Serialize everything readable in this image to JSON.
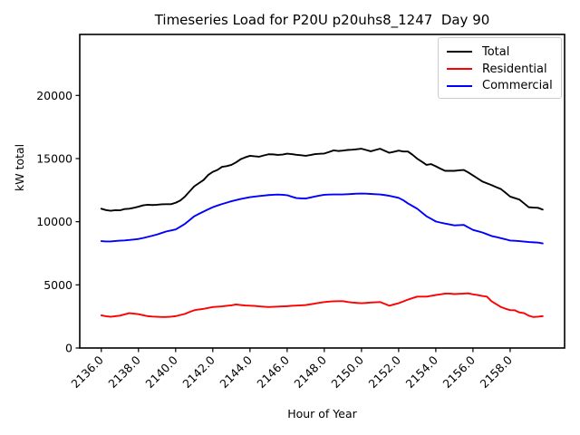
{
  "chart_data": {
    "type": "line",
    "title": "Timeseries Load for P20U p20uhs8_1247  Day 90",
    "xlabel": "Hour of Year",
    "ylabel": "kW total",
    "xlim": [
      2134.84,
      2160.93
    ],
    "ylim": [
      0,
      24830
    ],
    "grid": false,
    "legend_position": "upper right",
    "xticks": [
      2136,
      2138,
      2140,
      2142,
      2144,
      2146,
      2148,
      2150,
      2152,
      2154,
      2156,
      2158
    ],
    "xtick_labels": [
      "2136.0",
      "2138.0",
      "2140.0",
      "2142.0",
      "2144.0",
      "2146.0",
      "2148.0",
      "2150.0",
      "2152.0",
      "2154.0",
      "2156.0",
      "2158.0"
    ],
    "yticks": [
      0,
      5000,
      10000,
      15000,
      20000
    ],
    "ytick_labels": [
      "0",
      "5000",
      "10000",
      "15000",
      "20000"
    ],
    "series": [
      {
        "name": "Total",
        "color": "#000000",
        "points": [
          [
            2136.0,
            11030
          ],
          [
            2136.25,
            10920
          ],
          [
            2136.5,
            10870
          ],
          [
            2136.75,
            10910
          ],
          [
            2137.0,
            10900
          ],
          [
            2137.25,
            11000
          ],
          [
            2137.5,
            11030
          ],
          [
            2137.75,
            11100
          ],
          [
            2138.0,
            11190
          ],
          [
            2138.25,
            11300
          ],
          [
            2138.5,
            11340
          ],
          [
            2138.75,
            11320
          ],
          [
            2139.0,
            11340
          ],
          [
            2139.25,
            11380
          ],
          [
            2139.5,
            11390
          ],
          [
            2139.75,
            11390
          ],
          [
            2140.0,
            11500
          ],
          [
            2140.25,
            11680
          ],
          [
            2140.5,
            11990
          ],
          [
            2140.75,
            12400
          ],
          [
            2141.0,
            12800
          ],
          [
            2141.25,
            13050
          ],
          [
            2141.5,
            13300
          ],
          [
            2141.75,
            13700
          ],
          [
            2142.0,
            13950
          ],
          [
            2142.25,
            14100
          ],
          [
            2142.5,
            14350
          ],
          [
            2142.75,
            14400
          ],
          [
            2143.0,
            14500
          ],
          [
            2143.25,
            14700
          ],
          [
            2143.5,
            14950
          ],
          [
            2143.75,
            15100
          ],
          [
            2144.0,
            15220
          ],
          [
            2144.25,
            15180
          ],
          [
            2144.5,
            15150
          ],
          [
            2144.75,
            15250
          ],
          [
            2145.0,
            15340
          ],
          [
            2145.25,
            15330
          ],
          [
            2145.5,
            15290
          ],
          [
            2145.75,
            15320
          ],
          [
            2146.0,
            15390
          ],
          [
            2146.25,
            15350
          ],
          [
            2146.5,
            15300
          ],
          [
            2146.75,
            15260
          ],
          [
            2147.0,
            15220
          ],
          [
            2147.25,
            15280
          ],
          [
            2147.5,
            15350
          ],
          [
            2147.75,
            15380
          ],
          [
            2148.0,
            15400
          ],
          [
            2148.25,
            15520
          ],
          [
            2148.5,
            15650
          ],
          [
            2148.75,
            15600
          ],
          [
            2149.0,
            15630
          ],
          [
            2149.25,
            15680
          ],
          [
            2149.5,
            15700
          ],
          [
            2149.75,
            15740
          ],
          [
            2150.0,
            15780
          ],
          [
            2150.25,
            15680
          ],
          [
            2150.5,
            15580
          ],
          [
            2150.75,
            15680
          ],
          [
            2151.0,
            15780
          ],
          [
            2151.25,
            15620
          ],
          [
            2151.5,
            15460
          ],
          [
            2151.75,
            15540
          ],
          [
            2152.0,
            15630
          ],
          [
            2152.25,
            15560
          ],
          [
            2152.5,
            15560
          ],
          [
            2152.75,
            15300
          ],
          [
            2153.0,
            14990
          ],
          [
            2153.25,
            14750
          ],
          [
            2153.5,
            14500
          ],
          [
            2153.75,
            14560
          ],
          [
            2154.0,
            14390
          ],
          [
            2154.25,
            14200
          ],
          [
            2154.5,
            14030
          ],
          [
            2154.75,
            14030
          ],
          [
            2155.0,
            14030
          ],
          [
            2155.25,
            14070
          ],
          [
            2155.5,
            14100
          ],
          [
            2155.75,
            13900
          ],
          [
            2156.0,
            13670
          ],
          [
            2156.25,
            13430
          ],
          [
            2156.5,
            13190
          ],
          [
            2156.75,
            13040
          ],
          [
            2157.0,
            12900
          ],
          [
            2157.25,
            12740
          ],
          [
            2157.5,
            12590
          ],
          [
            2157.75,
            12300
          ],
          [
            2158.0,
            11990
          ],
          [
            2158.25,
            11870
          ],
          [
            2158.5,
            11750
          ],
          [
            2158.75,
            11450
          ],
          [
            2159.0,
            11150
          ],
          [
            2159.25,
            11120
          ],
          [
            2159.5,
            11100
          ],
          [
            2159.75,
            10960
          ]
        ]
      },
      {
        "name": "Residential",
        "color": "#ff0000",
        "points": [
          [
            2136.0,
            2590
          ],
          [
            2136.25,
            2520
          ],
          [
            2136.5,
            2470
          ],
          [
            2136.75,
            2520
          ],
          [
            2137.0,
            2560
          ],
          [
            2137.25,
            2660
          ],
          [
            2137.5,
            2760
          ],
          [
            2137.75,
            2720
          ],
          [
            2138.0,
            2680
          ],
          [
            2138.25,
            2600
          ],
          [
            2138.5,
            2520
          ],
          [
            2138.75,
            2490
          ],
          [
            2139.0,
            2470
          ],
          [
            2139.25,
            2450
          ],
          [
            2139.5,
            2450
          ],
          [
            2139.75,
            2480
          ],
          [
            2140.0,
            2520
          ],
          [
            2140.25,
            2610
          ],
          [
            2140.5,
            2700
          ],
          [
            2140.75,
            2850
          ],
          [
            2141.0,
            2990
          ],
          [
            2141.25,
            3050
          ],
          [
            2141.5,
            3100
          ],
          [
            2141.75,
            3170
          ],
          [
            2142.0,
            3240
          ],
          [
            2142.25,
            3270
          ],
          [
            2142.5,
            3300
          ],
          [
            2142.75,
            3340
          ],
          [
            2143.0,
            3380
          ],
          [
            2143.25,
            3450
          ],
          [
            2143.5,
            3400
          ],
          [
            2143.75,
            3370
          ],
          [
            2144.0,
            3350
          ],
          [
            2144.25,
            3330
          ],
          [
            2144.5,
            3300
          ],
          [
            2144.75,
            3270
          ],
          [
            2145.0,
            3240
          ],
          [
            2145.25,
            3260
          ],
          [
            2145.5,
            3280
          ],
          [
            2145.75,
            3300
          ],
          [
            2146.0,
            3310
          ],
          [
            2146.25,
            3340
          ],
          [
            2146.5,
            3360
          ],
          [
            2146.75,
            3380
          ],
          [
            2147.0,
            3400
          ],
          [
            2147.25,
            3460
          ],
          [
            2147.5,
            3520
          ],
          [
            2147.75,
            3580
          ],
          [
            2148.0,
            3640
          ],
          [
            2148.25,
            3670
          ],
          [
            2148.5,
            3700
          ],
          [
            2148.75,
            3710
          ],
          [
            2149.0,
            3710
          ],
          [
            2149.25,
            3650
          ],
          [
            2149.5,
            3600
          ],
          [
            2149.75,
            3570
          ],
          [
            2150.0,
            3550
          ],
          [
            2150.25,
            3570
          ],
          [
            2150.5,
            3600
          ],
          [
            2150.75,
            3620
          ],
          [
            2151.0,
            3640
          ],
          [
            2151.25,
            3500
          ],
          [
            2151.5,
            3350
          ],
          [
            2151.75,
            3450
          ],
          [
            2152.0,
            3550
          ],
          [
            2152.25,
            3690
          ],
          [
            2152.5,
            3830
          ],
          [
            2152.75,
            3950
          ],
          [
            2153.0,
            4070
          ],
          [
            2153.25,
            4070
          ],
          [
            2153.5,
            4070
          ],
          [
            2153.75,
            4130
          ],
          [
            2154.0,
            4190
          ],
          [
            2154.25,
            4250
          ],
          [
            2154.5,
            4310
          ],
          [
            2154.75,
            4310
          ],
          [
            2155.0,
            4270
          ],
          [
            2155.25,
            4290
          ],
          [
            2155.5,
            4310
          ],
          [
            2155.75,
            4330
          ],
          [
            2156.0,
            4250
          ],
          [
            2156.25,
            4190
          ],
          [
            2156.5,
            4120
          ],
          [
            2156.75,
            4070
          ],
          [
            2157.0,
            3700
          ],
          [
            2157.25,
            3480
          ],
          [
            2157.5,
            3250
          ],
          [
            2157.75,
            3110
          ],
          [
            2158.0,
            3000
          ],
          [
            2158.25,
            2990
          ],
          [
            2158.5,
            2820
          ],
          [
            2158.75,
            2760
          ],
          [
            2159.0,
            2560
          ],
          [
            2159.25,
            2450
          ],
          [
            2159.5,
            2480
          ],
          [
            2159.75,
            2520
          ]
        ]
      },
      {
        "name": "Commercial",
        "color": "#0000ff",
        "points": [
          [
            2136.0,
            8460
          ],
          [
            2136.25,
            8440
          ],
          [
            2136.5,
            8440
          ],
          [
            2136.75,
            8470
          ],
          [
            2137.0,
            8500
          ],
          [
            2137.25,
            8520
          ],
          [
            2137.5,
            8550
          ],
          [
            2137.75,
            8590
          ],
          [
            2138.0,
            8630
          ],
          [
            2138.25,
            8710
          ],
          [
            2138.5,
            8800
          ],
          [
            2138.75,
            8890
          ],
          [
            2139.0,
            8990
          ],
          [
            2139.25,
            9110
          ],
          [
            2139.5,
            9230
          ],
          [
            2139.75,
            9310
          ],
          [
            2140.0,
            9390
          ],
          [
            2140.25,
            9600
          ],
          [
            2140.5,
            9830
          ],
          [
            2140.75,
            10130
          ],
          [
            2141.0,
            10430
          ],
          [
            2141.25,
            10620
          ],
          [
            2141.5,
            10800
          ],
          [
            2141.75,
            10980
          ],
          [
            2142.0,
            11150
          ],
          [
            2142.25,
            11280
          ],
          [
            2142.5,
            11400
          ],
          [
            2142.75,
            11510
          ],
          [
            2143.0,
            11620
          ],
          [
            2143.25,
            11710
          ],
          [
            2143.5,
            11800
          ],
          [
            2143.75,
            11870
          ],
          [
            2144.0,
            11940
          ],
          [
            2144.25,
            11990
          ],
          [
            2144.5,
            12030
          ],
          [
            2144.75,
            12070
          ],
          [
            2145.0,
            12110
          ],
          [
            2145.25,
            12130
          ],
          [
            2145.5,
            12150
          ],
          [
            2145.75,
            12130
          ],
          [
            2146.0,
            12100
          ],
          [
            2146.25,
            11980
          ],
          [
            2146.5,
            11870
          ],
          [
            2146.75,
            11850
          ],
          [
            2147.0,
            11840
          ],
          [
            2147.25,
            11920
          ],
          [
            2147.5,
            12000
          ],
          [
            2147.75,
            12070
          ],
          [
            2148.0,
            12130
          ],
          [
            2148.25,
            12150
          ],
          [
            2148.5,
            12160
          ],
          [
            2148.75,
            12160
          ],
          [
            2149.0,
            12160
          ],
          [
            2149.25,
            12180
          ],
          [
            2149.5,
            12200
          ],
          [
            2149.75,
            12220
          ],
          [
            2150.0,
            12230
          ],
          [
            2150.25,
            12220
          ],
          [
            2150.5,
            12200
          ],
          [
            2150.75,
            12180
          ],
          [
            2151.0,
            12160
          ],
          [
            2151.25,
            12110
          ],
          [
            2151.5,
            12050
          ],
          [
            2151.75,
            11970
          ],
          [
            2152.0,
            11890
          ],
          [
            2152.25,
            11700
          ],
          [
            2152.5,
            11450
          ],
          [
            2152.75,
            11240
          ],
          [
            2153.0,
            11030
          ],
          [
            2153.25,
            10730
          ],
          [
            2153.5,
            10430
          ],
          [
            2153.75,
            10230
          ],
          [
            2154.0,
            10020
          ],
          [
            2154.25,
            9930
          ],
          [
            2154.5,
            9850
          ],
          [
            2154.75,
            9780
          ],
          [
            2155.0,
            9710
          ],
          [
            2155.25,
            9730
          ],
          [
            2155.5,
            9750
          ],
          [
            2155.75,
            9550
          ],
          [
            2156.0,
            9350
          ],
          [
            2156.25,
            9250
          ],
          [
            2156.5,
            9150
          ],
          [
            2156.75,
            9010
          ],
          [
            2157.0,
            8870
          ],
          [
            2157.25,
            8790
          ],
          [
            2157.5,
            8700
          ],
          [
            2157.75,
            8610
          ],
          [
            2158.0,
            8510
          ],
          [
            2158.25,
            8490
          ],
          [
            2158.5,
            8460
          ],
          [
            2158.75,
            8430
          ],
          [
            2159.0,
            8390
          ],
          [
            2159.25,
            8370
          ],
          [
            2159.5,
            8350
          ],
          [
            2159.75,
            8280
          ]
        ]
      }
    ]
  }
}
